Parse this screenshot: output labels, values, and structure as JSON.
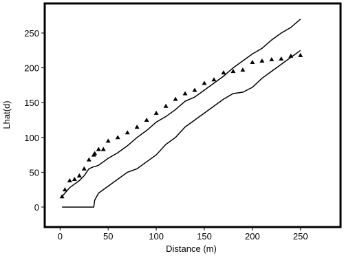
{
  "chart_data": {
    "type": "line",
    "x_label": "Distance (m)",
    "y_label": "Lhat(d)",
    "x": [
      2,
      5,
      10,
      15,
      20,
      25,
      30,
      35,
      36,
      40,
      45,
      50,
      60,
      70,
      80,
      90,
      100,
      110,
      120,
      130,
      140,
      150,
      160,
      170,
      180,
      190,
      200,
      210,
      220,
      230,
      240,
      250
    ],
    "series": [
      {
        "color": "#000000",
        "marker": "triangle",
        "values": [
          15,
          25,
          38,
          40,
          45,
          55,
          68,
          75,
          77,
          83,
          83,
          95,
          100,
          107,
          115,
          125,
          135,
          145,
          155,
          163,
          168,
          178,
          183,
          193,
          195,
          197,
          208,
          210,
          212,
          213,
          217,
          218
        ]
      },
      {
        "color": "#000000",
        "marker": "none",
        "values": [
          15,
          20,
          28,
          33,
          38,
          45,
          55,
          58,
          58,
          60,
          65,
          70,
          78,
          88,
          100,
          110,
          122,
          130,
          140,
          152,
          158,
          168,
          178,
          188,
          200,
          210,
          220,
          228,
          240,
          250,
          258,
          270
        ]
      },
      {
        "color": "#000000",
        "marker": "none",
        "values": [
          0,
          0,
          0,
          0,
          0,
          0,
          0,
          0,
          10,
          20,
          25,
          30,
          40,
          50,
          55,
          65,
          75,
          90,
          100,
          115,
          125,
          135,
          145,
          155,
          163,
          165,
          172,
          185,
          195,
          205,
          215,
          225
        ]
      }
    ],
    "xlim": [
      -16,
      291.7
    ],
    "ylim": [
      -28.7,
      292.5
    ],
    "xticks": [
      0,
      50,
      100,
      150,
      200,
      250
    ],
    "yticks": [
      0,
      50,
      100,
      150,
      200,
      250
    ]
  }
}
